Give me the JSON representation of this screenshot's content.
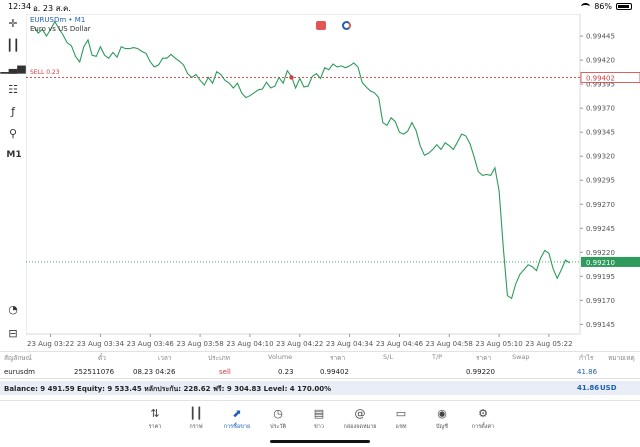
{
  "status_bar": {
    "time": "12:34",
    "date": "อ. 23 ส.ค.",
    "battery": "86%"
  },
  "chart": {
    "symbol": "EURUSDm",
    "timeframe_suffix": "• M1",
    "description": "Euro vs US Dollar",
    "sell_label": "SELL 0.23",
    "sell_price_label": "0.99402",
    "current_price_label": "0.99210",
    "timeframe_button": "M1",
    "colors": {
      "line": "#2e9a5c",
      "sell": "#d23c3c",
      "current": "#2e9a5c",
      "grid": "#e6e6e6"
    }
  },
  "chart_data": {
    "type": "line",
    "ylim": [
      0.99135,
      0.99468
    ],
    "yticks": [
      "0.99445",
      "0.99420",
      "0.99395",
      "0.99370",
      "0.99345",
      "0.99320",
      "0.99295",
      "0.99270",
      "0.99245",
      "0.99220",
      "0.99195",
      "0.99170",
      "0.99145"
    ],
    "ytick_values": [
      0.99445,
      0.9942,
      0.99395,
      0.9937,
      0.99345,
      0.9932,
      0.99295,
      0.9927,
      0.99245,
      0.9922,
      0.99195,
      0.9917,
      0.99145
    ],
    "xticks": [
      "23 Aug 03:22",
      "23 Aug 03:34",
      "23 Aug 03:46",
      "23 Aug 03:58",
      "23 Aug 04:10",
      "23 Aug 04:22",
      "23 Aug 04:34",
      "23 Aug 04:46",
      "23 Aug 04:58",
      "23 Aug 05:10",
      "23 Aug 05:22"
    ],
    "xtick_index": [
      4,
      16,
      28,
      40,
      52,
      64,
      76,
      88,
      100,
      112,
      124
    ],
    "sell_level": 0.99402,
    "sell_marker_index": 62,
    "current_level": 0.9921,
    "x_count": 132,
    "series": [
      {
        "values": [
          0.99455,
          0.99448,
          0.99452,
          0.99445,
          0.99452,
          0.9946,
          0.99453,
          0.99446,
          0.99438,
          0.99435,
          0.99424,
          0.99418,
          0.99434,
          0.99441,
          0.99425,
          0.99424,
          0.99434,
          0.99425,
          0.99422,
          0.99428,
          0.99423,
          0.99434,
          0.99432,
          0.99432,
          0.99433,
          0.99432,
          0.99429,
          0.99427,
          0.99418,
          0.99413,
          0.99415,
          0.99422,
          0.99422,
          0.99426,
          0.99422,
          0.99419,
          0.99415,
          0.99406,
          0.99402,
          0.99405,
          0.99399,
          0.99394,
          0.99402,
          0.99396,
          0.99408,
          0.99405,
          0.99399,
          0.99396,
          0.99391,
          0.99396,
          0.99386,
          0.99381,
          0.99383,
          0.99386,
          0.99389,
          0.9939,
          0.99397,
          0.99391,
          0.99393,
          0.99402,
          0.99396,
          0.99409,
          0.99403,
          0.99391,
          0.99401,
          0.99392,
          0.99393,
          0.99403,
          0.99406,
          0.99401,
          0.99412,
          0.9941,
          0.99416,
          0.99413,
          0.99414,
          0.99412,
          0.99414,
          0.99417,
          0.99413,
          0.99397,
          0.99392,
          0.99388,
          0.99386,
          0.99381,
          0.99355,
          0.99352,
          0.9936,
          0.99356,
          0.99345,
          0.99343,
          0.99346,
          0.99355,
          0.99347,
          0.99331,
          0.99321,
          0.99323,
          0.99327,
          0.99332,
          0.99327,
          0.99334,
          0.99331,
          0.99327,
          0.99335,
          0.99343,
          0.99341,
          0.99333,
          0.99319,
          0.99304,
          0.993,
          0.99301,
          0.993,
          0.99308,
          0.99284,
          0.99225,
          0.99175,
          0.99172,
          0.99187,
          0.99197,
          0.99202,
          0.99207,
          0.99205,
          0.99201,
          0.99214,
          0.99222,
          0.99219,
          0.99203,
          0.99193,
          0.99202,
          0.99212,
          0.99209
        ]
      }
    ]
  },
  "positions_table": {
    "headers": {
      "symbol": "สัญลักษณ์",
      "ticket": "ตั๋ว",
      "time": "เวลา",
      "type": "ประเภท",
      "volume": "Volume",
      "price": "ราคา",
      "sl": "S/L",
      "tp": "T/P",
      "current_price": "ราคา",
      "swap": "Swap",
      "profit": "กำไร",
      "comment": "หมายเหตุ"
    },
    "row": {
      "symbol": "eurusdm",
      "ticket": "252511076",
      "time": "08.23 04:26",
      "type": "sell",
      "volume": "0.23",
      "price": "0.99402",
      "current_price": "0.99220",
      "profit": "41.86"
    }
  },
  "balance_bar": {
    "text": "Balance: 9 491.59 Equity: 9 533.45 หลักประกัน: 228.62 ฟรี: 9 304.83 Level: 4 170.00%",
    "profit": "41.86",
    "currency": "USD"
  },
  "nav": {
    "items": [
      {
        "label": "ราคา",
        "icon": "quotes-icon"
      },
      {
        "label": "กราฟ",
        "icon": "chart-icon"
      },
      {
        "label": "การซื้อขาย",
        "icon": "trade-icon",
        "active": true
      },
      {
        "label": "ประวัติ",
        "icon": "history-icon"
      },
      {
        "label": "ข่าว",
        "icon": "news-icon"
      },
      {
        "label": "กล่องจดหมาย",
        "icon": "mailbox-icon"
      },
      {
        "label": "แชท",
        "icon": "chat-icon"
      },
      {
        "label": "บัญชี",
        "icon": "accounts-icon"
      },
      {
        "label": "การตั้งค่า",
        "icon": "settings-icon"
      }
    ]
  }
}
